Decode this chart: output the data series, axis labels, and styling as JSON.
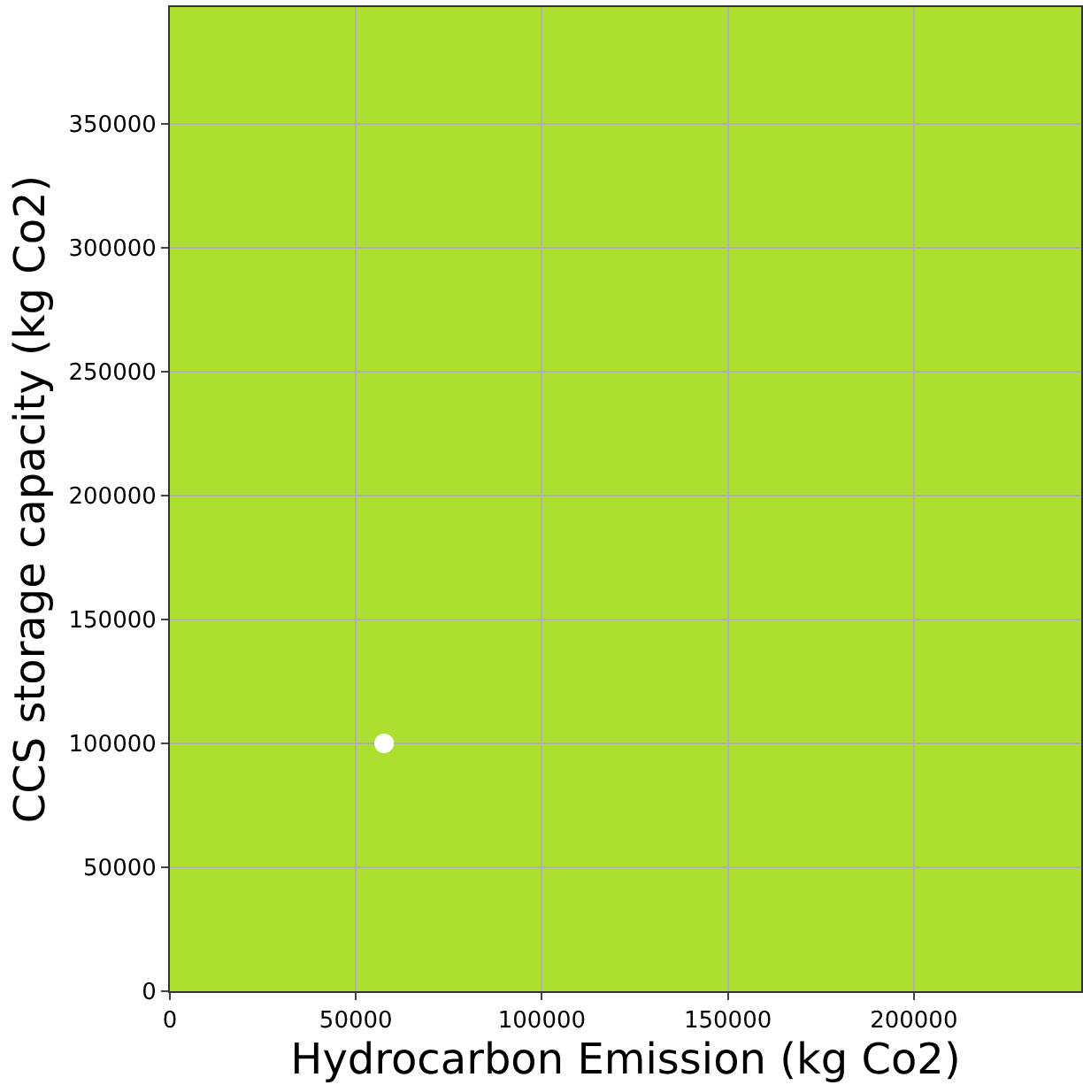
{
  "chart_data": {
    "type": "scatter",
    "xlabel": "Hydrocarbon Emission (kg Co2)",
    "ylabel": "CCS storage capacity (kg Co2)",
    "x": [
      57600
    ],
    "values": [
      100000
    ],
    "color": "#ffffff",
    "marker": "circle",
    "xlim": [
      0,
      245000
    ],
    "xticks": [
      0,
      50000,
      100000,
      150000,
      200000
    ],
    "ylim": [
      0,
      397000
    ],
    "yticks": [
      0,
      50000,
      100000,
      150000,
      200000,
      250000,
      300000,
      350000
    ],
    "grid": true,
    "legend": false
  }
}
